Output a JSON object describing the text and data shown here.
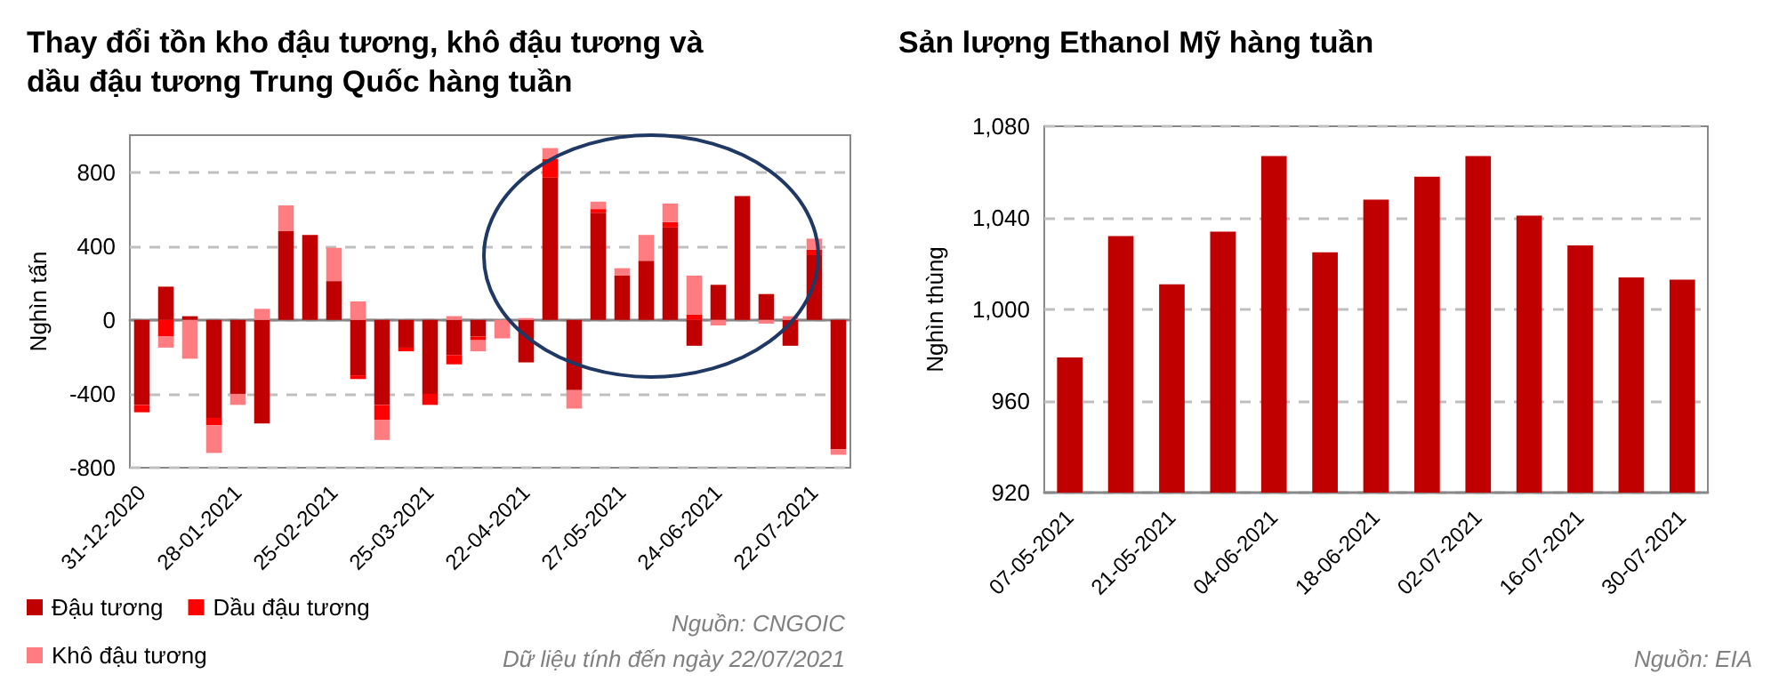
{
  "chart_data": [
    {
      "type": "bar",
      "title": "Thay đổi tồn kho đậu tương, khô đậu tương và dầu đậu tương Trung Quốc hàng tuần",
      "ylabel": "Nghìn tấn",
      "categories": [
        "31-12-2020",
        null,
        null,
        null,
        "28-01-2021",
        null,
        null,
        null,
        "25-02-2021",
        null,
        null,
        null,
        "25-03-2021",
        null,
        null,
        null,
        "22-04-2021",
        null,
        null,
        null,
        "27-05-2021",
        null,
        null,
        null,
        "24-06-2021",
        null,
        null,
        null,
        "22-07-2021",
        null
      ],
      "series": [
        {
          "name": "Đậu tương",
          "color": "#c00000",
          "values": [
            -460,
            180,
            20,
            -530,
            -400,
            -560,
            480,
            460,
            210,
            -300,
            -460,
            -150,
            -400,
            -190,
            -90,
            null,
            -230,
            770,
            -380,
            580,
            240,
            320,
            500,
            -140,
            190,
            670,
            140,
            -140,
            350,
            -700
          ]
        },
        {
          "name": "Dầu đậu tương",
          "color": "#ff0000",
          "values": [
            -40,
            -90,
            null,
            -40,
            null,
            null,
            null,
            null,
            null,
            -20,
            -80,
            -20,
            -60,
            -50,
            -20,
            null,
            null,
            100,
            null,
            20,
            null,
            null,
            30,
            30,
            null,
            null,
            null,
            null,
            30,
            null
          ]
        },
        {
          "name": "Khô đậu tương",
          "color": "#ff7c80",
          "values": [
            null,
            -60,
            -210,
            -150,
            -60,
            60,
            140,
            null,
            180,
            100,
            -110,
            null,
            null,
            20,
            -60,
            -100,
            10,
            60,
            -100,
            40,
            40,
            140,
            100,
            210,
            -30,
            null,
            -20,
            20,
            60,
            -30
          ]
        }
      ],
      "stacked": true,
      "ylim": [
        -800,
        1000
      ],
      "yticks": [
        -800,
        -400,
        0,
        400,
        800
      ],
      "grid": "y",
      "legend": "bottom left",
      "annotations": [
        "Nguồn: CNGOIC",
        "Dữ liệu tính đến ngày 22/07/2021"
      ]
    },
    {
      "type": "bar",
      "title": "Sản lượng Ethanol Mỹ hàng tuần",
      "ylabel": "Nghìn thùng",
      "categories": [
        "07-05-2021",
        null,
        "21-05-2021",
        null,
        "04-06-2021",
        null,
        "18-06-2021",
        null,
        "02-07-2021",
        null,
        "16-07-2021",
        null,
        "30-07-2021"
      ],
      "values": [
        979,
        1032,
        1011,
        1034,
        1067,
        1025,
        1048,
        1058,
        1067,
        1041,
        1028,
        1014,
        1013
      ],
      "color": "#c00000",
      "ylim": [
        920,
        1080
      ],
      "yticks": [
        920,
        960,
        {
          "value": 1000,
          "label": "1,000"
        },
        {
          "value": 1040,
          "label": "1,040"
        },
        {
          "value": 1080,
          "label": "1,080"
        }
      ],
      "grid": "y",
      "annotations": [
        "Nguồn: EIA"
      ]
    }
  ]
}
